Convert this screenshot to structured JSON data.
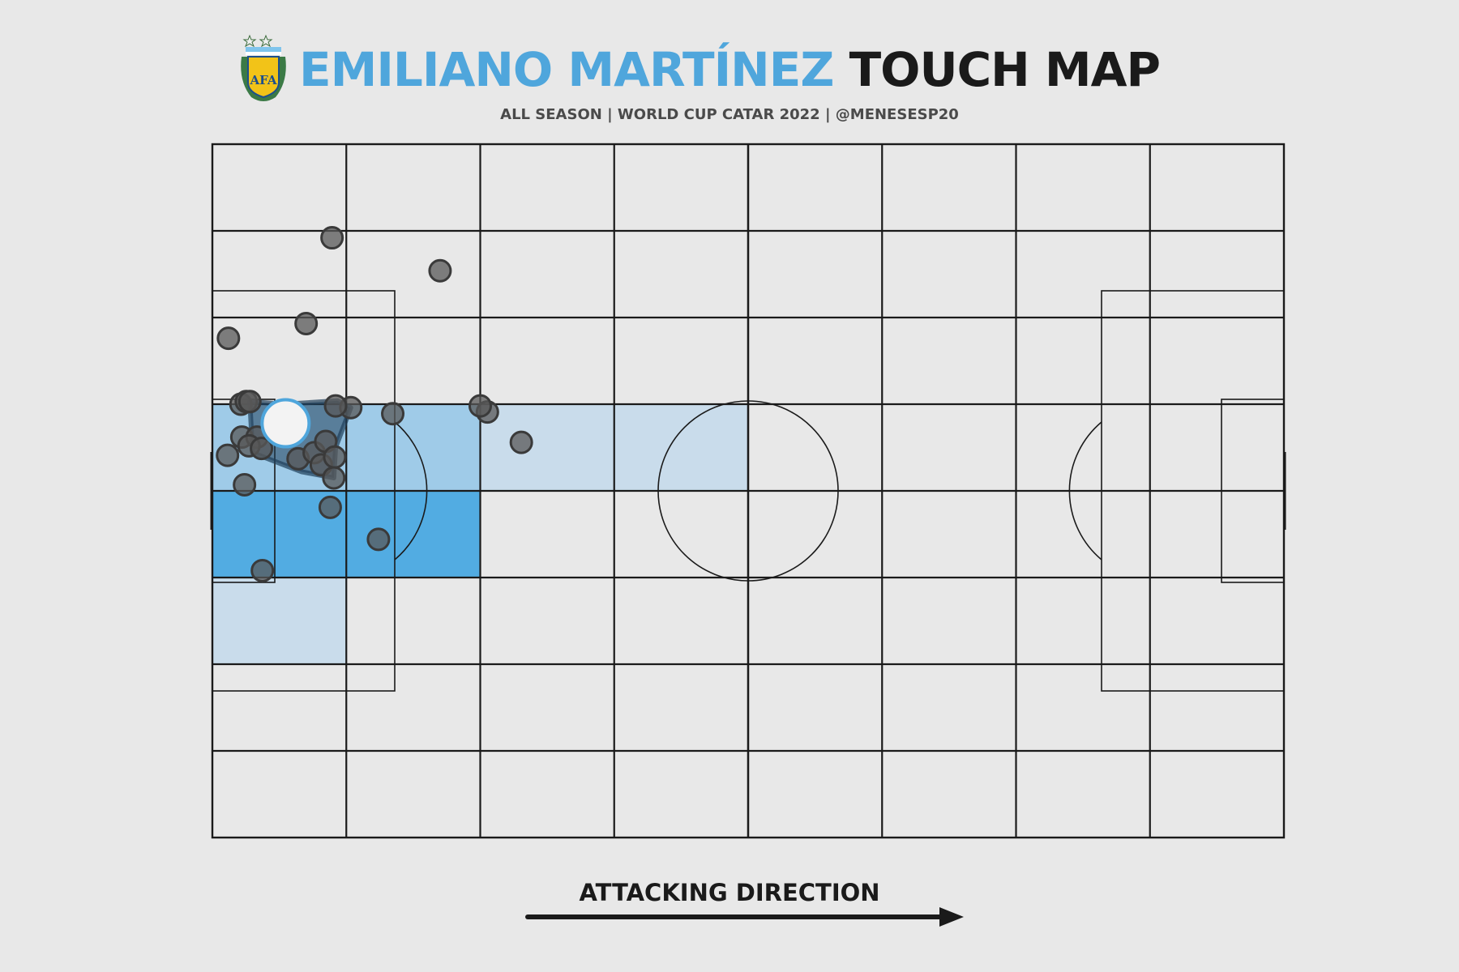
{
  "header": {
    "player_name": "EMILIANO MARTÍNEZ",
    "title_rest": "TOUCH MAP",
    "subtitle": "ALL SEASON | WORLD CUP CATAR 2022 | @MENESESP20",
    "crest_text": "AFA",
    "crest_icon": "afa-crest-icon"
  },
  "footer": {
    "direction_label": "ATTACKING DIRECTION",
    "arrow_icon": "arrow-right-icon"
  },
  "colors": {
    "background": "#e8e8e8",
    "accent": "#4fa6dc",
    "dark": "#1a1a1a",
    "point": "#585858"
  },
  "chart_data": {
    "type": "scatter",
    "pitch": {
      "length": 120,
      "width": 80,
      "grid_columns": 8,
      "grid_rows": 8,
      "grid": true
    },
    "attacking_direction": "left-to-right",
    "points": [
      [
        25.5,
        14.6
      ],
      [
        13.4,
        10.8
      ],
      [
        1.8,
        22.4
      ],
      [
        10.5,
        20.7
      ],
      [
        3.2,
        30.0
      ],
      [
        3.8,
        29.7
      ],
      [
        4.2,
        29.7
      ],
      [
        7.6,
        31.2
      ],
      [
        15.5,
        30.4
      ],
      [
        13.8,
        30.2
      ],
      [
        1.7,
        35.9
      ],
      [
        3.3,
        33.8
      ],
      [
        5.0,
        33.8
      ],
      [
        4.1,
        34.8
      ],
      [
        5.5,
        35.1
      ],
      [
        9.6,
        36.3
      ],
      [
        11.4,
        35.6
      ],
      [
        12.7,
        34.3
      ],
      [
        12.2,
        37.0
      ],
      [
        13.7,
        36.1
      ],
      [
        13.6,
        38.5
      ],
      [
        3.6,
        39.3
      ],
      [
        20.2,
        31.1
      ],
      [
        30.8,
        30.9
      ],
      [
        30.0,
        30.2
      ],
      [
        34.6,
        34.4
      ],
      [
        13.2,
        41.9
      ],
      [
        18.6,
        45.6
      ],
      [
        5.6,
        49.2
      ]
    ],
    "average_position": [
      8.2,
      32.2
    ],
    "convex_hull": [
      [
        4.2,
        29.7
      ],
      [
        8.1,
        30.0
      ],
      [
        14.0,
        29.6
      ],
      [
        15.5,
        30.4
      ],
      [
        13.8,
        35.0
      ],
      [
        13.6,
        38.5
      ],
      [
        10.0,
        37.8
      ],
      [
        4.5,
        35.6
      ]
    ],
    "heatmap_zones": [
      {
        "col": 0,
        "row": 3,
        "intensity": 0.45
      },
      {
        "col": 1,
        "row": 3,
        "intensity": 0.45
      },
      {
        "col": 2,
        "row": 3,
        "intensity": 0.15
      },
      {
        "col": 3,
        "row": 3,
        "intensity": 0.15
      },
      {
        "col": 0,
        "row": 4,
        "intensity": 1.0
      },
      {
        "col": 1,
        "row": 4,
        "intensity": 1.0
      },
      {
        "col": 0,
        "row": 5,
        "intensity": 0.15
      }
    ]
  }
}
